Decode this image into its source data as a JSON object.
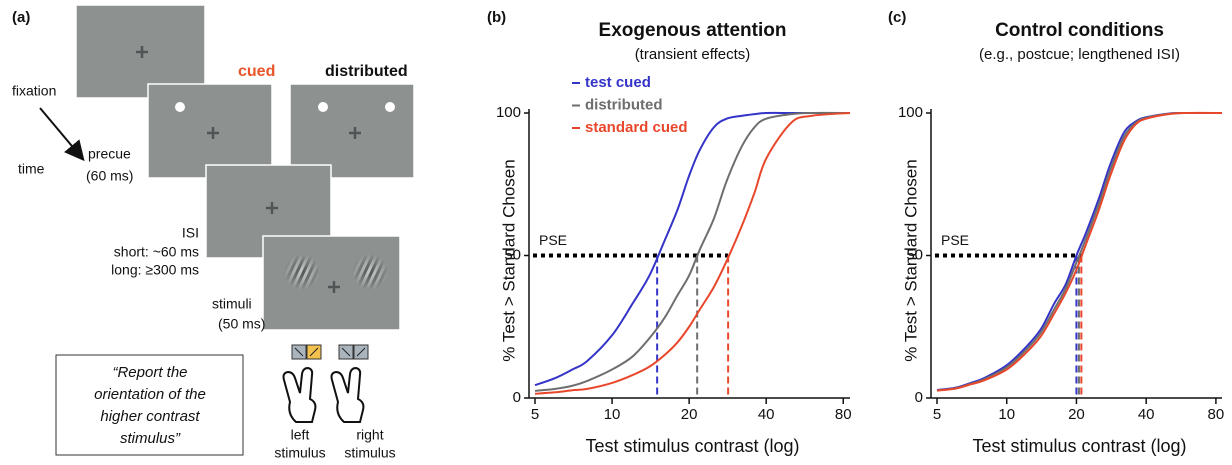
{
  "diagram": {
    "label": "(a)",
    "column_labels": [
      "cued",
      "distributed"
    ],
    "steps": [
      {
        "label": "fixation"
      },
      {
        "label": "precue",
        "duration": "(60 ms)"
      },
      {
        "label": "ISI",
        "lines": [
          "short: ~60 ms",
          "long: ≥300 ms"
        ]
      },
      {
        "label": "stimuli",
        "duration": "(50 ms)"
      }
    ],
    "time_label": "time",
    "instruction": [
      "“Report the",
      "orientation of the",
      "higher contrast",
      "stimulus”"
    ],
    "responses": [
      [
        "left",
        "stimulus"
      ],
      [
        "right",
        "stimulus"
      ]
    ]
  },
  "chart_data": [
    {
      "type": "line",
      "panel_label": "(b)",
      "title": "Exogenous attention",
      "subtitle": "(transient effects)",
      "xlabel": "Test stimulus contrast (log)",
      "ylabel": "% Test > Standard Chosen",
      "xscale": "log",
      "xlim": [
        5,
        85
      ],
      "xticks": [
        5,
        10,
        20,
        40,
        80
      ],
      "ylim": [
        0,
        100
      ],
      "yticks": [
        0,
        50,
        100
      ],
      "legend": "upper left",
      "reference_line": {
        "label": "PSE",
        "y": 50
      },
      "x": [
        5,
        6,
        7,
        8,
        10,
        12,
        14,
        16,
        18,
        20,
        22,
        25,
        28,
        32,
        36,
        40,
        50,
        60,
        85
      ],
      "series": [
        {
          "name": "test cued",
          "color": "#3434c8",
          "pse": 15,
          "values": [
            4.5,
            7,
            10,
            13,
            22,
            33,
            43,
            55,
            66,
            78,
            87,
            95,
            98,
            99,
            99.6,
            100,
            100,
            100,
            100
          ]
        },
        {
          "name": "distributed",
          "color": "#6e6e6e",
          "pse": 21.5,
          "values": [
            2.5,
            3.2,
            4.3,
            6,
            10,
            14.5,
            21,
            28,
            36,
            43,
            52,
            63,
            76,
            88,
            95,
            98,
            99.6,
            100,
            100
          ]
        },
        {
          "name": "standard cued",
          "color": "#e8472b",
          "pse": 28.4,
          "values": [
            1.5,
            2,
            2.7,
            3.2,
            5.3,
            8,
            11,
            15,
            19.5,
            25,
            31,
            39,
            48,
            60,
            72,
            84,
            96.5,
            99,
            100
          ]
        }
      ]
    },
    {
      "type": "line",
      "panel_label": "(c)",
      "title": "Control conditions",
      "subtitle": "(e.g., postcue; lengthened ISI)",
      "xlabel": "Test stimulus contrast (log)",
      "ylabel": "% Test > Standard Chosen",
      "xscale": "log",
      "xlim": [
        5,
        85
      ],
      "xticks": [
        5,
        10,
        20,
        40,
        80
      ],
      "ylim": [
        0,
        100
      ],
      "yticks": [
        0,
        50,
        100
      ],
      "legend": "none",
      "reference_line": {
        "label": "PSE",
        "y": 50
      },
      "x": [
        5,
        6,
        7,
        8,
        10,
        12,
        14,
        16,
        18,
        20,
        22,
        25,
        28,
        32,
        36,
        40,
        50,
        60,
        85
      ],
      "series": [
        {
          "color": "#3434c8",
          "pse": 20,
          "values": [
            2.8,
            3.6,
            5.3,
            7,
            11.5,
            17.5,
            24,
            33,
            40,
            50,
            58,
            70,
            82,
            93,
            97,
            98.5,
            99.8,
            100,
            100
          ]
        },
        {
          "color": "#6e6e6e",
          "pse": 20.5,
          "values": [
            2.7,
            3.4,
            5,
            6.6,
            10.8,
            16.5,
            22.8,
            31,
            38.5,
            47.5,
            56,
            68,
            80,
            91.5,
            96.5,
            98.3,
            99.7,
            100,
            100
          ]
        },
        {
          "color": "#e8472b",
          "pse": 21,
          "values": [
            2.6,
            3.3,
            4.8,
            6.2,
            10,
            15.5,
            21.5,
            29.5,
            37,
            45,
            54,
            66,
            78,
            90,
            96,
            98,
            99.6,
            100,
            100
          ]
        }
      ]
    }
  ]
}
